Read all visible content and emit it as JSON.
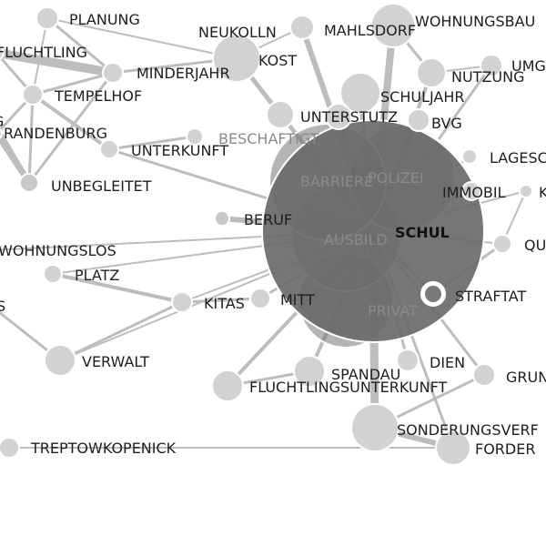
{
  "graph": {
    "focus_node": "SCHUL",
    "nodes": [
      {
        "id": "planung",
        "label": "PLANUNG",
        "size": 3,
        "shade": "#d2d2d2"
      },
      {
        "id": "fluchtling",
        "label": "FLUCHTLING",
        "size": 1,
        "shade": "#d2d2d2"
      },
      {
        "id": "minderjahr",
        "label": "MINDERJAHR",
        "size": 2,
        "shade": "#d2d2d2"
      },
      {
        "id": "tempelhof",
        "label": "TEMPELHOF",
        "size": 2,
        "shade": "#d2d2d2"
      },
      {
        "id": "g",
        "label": "G",
        "size": 1,
        "shade": "#d2d2d2"
      },
      {
        "id": "brandenburg",
        "label": "RANDENBURG",
        "size": 1,
        "shade": "#d2d2d2"
      },
      {
        "id": "unterkunft",
        "label": "UNTERKUNFT",
        "size": 2,
        "shade": "#d2d2d2"
      },
      {
        "id": "unbegleitet",
        "label": "UNBEGLEITET",
        "size": 2,
        "shade": "#c8c8c8"
      },
      {
        "id": "wohnungslos",
        "label": "WOHNUNGSLOS",
        "size": 1,
        "shade": "#d2d2d2"
      },
      {
        "id": "platz",
        "label": "PLATZ",
        "size": 2,
        "shade": "#d2d2d2"
      },
      {
        "id": "s",
        "label": "S",
        "size": 1,
        "shade": "#d2d2d2"
      },
      {
        "id": "verwalt",
        "label": "VERWALT",
        "size": 3,
        "shade": "#d2d2d2"
      },
      {
        "id": "treptowkopenick",
        "label": "TREPTOWKOPENICK",
        "size": 2,
        "shade": "#d2d2d2"
      },
      {
        "id": "neukolln",
        "label": "NEUKOLLN",
        "size": 4,
        "shade": "#d2d2d2"
      },
      {
        "id": "kost",
        "label": "KOST",
        "size": 4,
        "shade": "#d2d2d2"
      },
      {
        "id": "mahlsdorf",
        "label": "MAHLSDORF",
        "size": 3,
        "shade": "#d2d2d2"
      },
      {
        "id": "wohnungsbau",
        "label": "WOHNUNGSBAU",
        "size": 3,
        "shade": "#d2d2d2"
      },
      {
        "id": "nutzung",
        "label": "NUTZUNG",
        "size": 3,
        "shade": "#d2d2d2"
      },
      {
        "id": "umg",
        "label": "UMG",
        "size": 2,
        "shade": "#d2d2d2"
      },
      {
        "id": "schuljahr",
        "label": "SCHULJAHR",
        "size": 3,
        "shade": "#d2d2d2"
      },
      {
        "id": "bvg",
        "label": "BVG",
        "size": 2,
        "shade": "#d2d2d2"
      },
      {
        "id": "unterstutz",
        "label": "UNTERSTUTZ",
        "size": 3,
        "shade": "#d2d2d2"
      },
      {
        "id": "beschaft",
        "label": "BESCHAFTIGT",
        "size": 2,
        "shade": "#d2d2d2"
      },
      {
        "id": "lagesc",
        "label": "LAGESC",
        "size": 1,
        "shade": "#d2d2d2"
      },
      {
        "id": "immobil",
        "label": "IMMOBIL",
        "size": 2,
        "shade": "#d2d2d2"
      },
      {
        "id": "k",
        "label": "K",
        "size": 1,
        "shade": "#d2d2d2"
      },
      {
        "id": "qu",
        "label": "QU",
        "size": 1,
        "shade": "#d2d2d2"
      },
      {
        "id": "beruf",
        "label": "BERUF",
        "size": 1,
        "shade": "#c8c8c8"
      },
      {
        "id": "kitas",
        "label": "KITAS",
        "size": 2,
        "shade": "#d2d2d2"
      },
      {
        "id": "mitt",
        "label": "MITT",
        "size": 2,
        "shade": "#d2d2d2"
      },
      {
        "id": "straftat",
        "label": "STRAFTAT",
        "size": 2,
        "shade": "#d2d2d2"
      },
      {
        "id": "spandau",
        "label": "SPANDAU",
        "size": 3,
        "shade": "#d2d2d2"
      },
      {
        "id": "dien",
        "label": "DIEN",
        "size": 2,
        "shade": "#d2d2d2"
      },
      {
        "id": "grun",
        "label": "GRUN",
        "size": 2,
        "shade": "#d2d2d2"
      },
      {
        "id": "fluchtlingsunterkunft",
        "label": "FLUCHTLINGSUNTERKUNFT",
        "size": 3,
        "shade": "#d2d2d2"
      },
      {
        "id": "sonderungsverf",
        "label": "SONDERUNGSVERF",
        "size": 4,
        "shade": "#d2d2d2"
      },
      {
        "id": "forder",
        "label": "FORDER",
        "size": 3,
        "shade": "#d2d2d2"
      },
      {
        "id": "barriere",
        "label": "BARRIERE",
        "size": 5,
        "shade": "#777777"
      },
      {
        "id": "polizei",
        "label": "POLIZEI",
        "size": 5,
        "shade": "#777777"
      },
      {
        "id": "ausbild",
        "label": "AUSBILD",
        "size": 5,
        "shade": "#777777"
      },
      {
        "id": "privat",
        "label": "PRIVAT",
        "size": 5,
        "shade": "#777777"
      },
      {
        "id": "schul",
        "label": "SCHUL",
        "size": 10,
        "shade": "#6a6a6a"
      }
    ]
  }
}
